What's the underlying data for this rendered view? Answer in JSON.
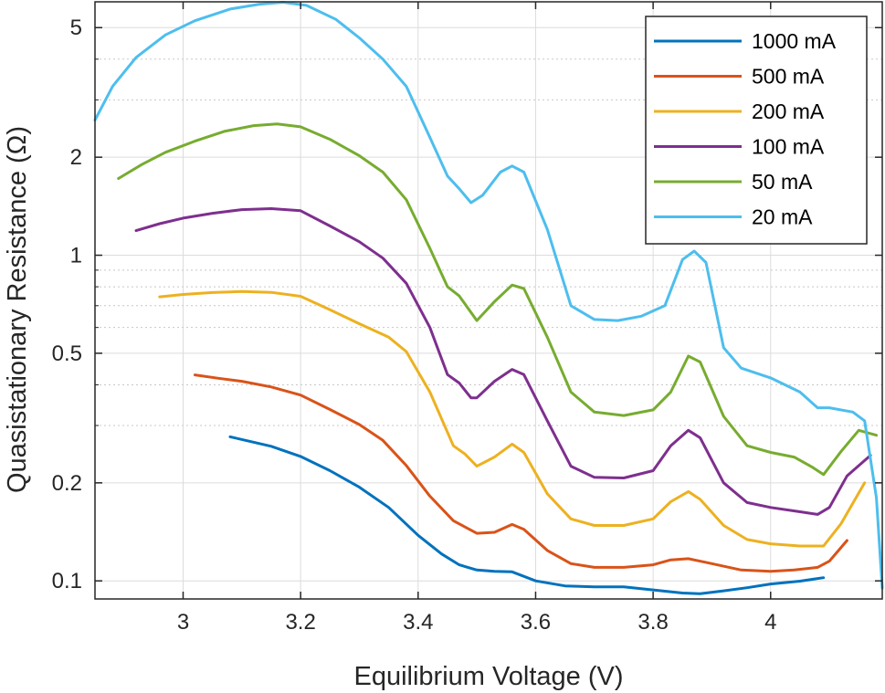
{
  "chart_data": {
    "type": "line",
    "title": "",
    "xlabel": "Equilibrium Voltage (V)",
    "ylabel": "Quasistationary Resistance (Ω)",
    "x_scale": "linear",
    "y_scale": "log",
    "xlim": [
      2.85,
      4.19
    ],
    "ylim": [
      0.088,
      6.0
    ],
    "x_ticks": [
      3,
      3.2,
      3.4,
      3.6,
      3.8,
      4
    ],
    "x_tick_labels": [
      "3",
      "3.2",
      "3.4",
      "3.6",
      "3.8",
      "4"
    ],
    "y_ticks": [
      0.1,
      0.2,
      0.5,
      1,
      2,
      5
    ],
    "y_tick_labels": [
      "0.1",
      "0.2",
      "0.5",
      "1",
      "2",
      "5"
    ],
    "y_minor_ticks": [
      0.3,
      0.4,
      0.6,
      0.7,
      0.8,
      0.9,
      3,
      4
    ],
    "grid": true,
    "legend_position": "top-right",
    "series": [
      {
        "name": "1000 mA",
        "color": "#0072BD",
        "points": [
          [
            3.08,
            0.277
          ],
          [
            3.15,
            0.259
          ],
          [
            3.2,
            0.241
          ],
          [
            3.25,
            0.218
          ],
          [
            3.3,
            0.194
          ],
          [
            3.35,
            0.168
          ],
          [
            3.4,
            0.138
          ],
          [
            3.44,
            0.121
          ],
          [
            3.47,
            0.112
          ],
          [
            3.5,
            0.108
          ],
          [
            3.53,
            0.107
          ],
          [
            3.56,
            0.1066
          ],
          [
            3.6,
            0.1
          ],
          [
            3.65,
            0.0965
          ],
          [
            3.7,
            0.0958
          ],
          [
            3.75,
            0.0958
          ],
          [
            3.8,
            0.0938
          ],
          [
            3.85,
            0.0918
          ],
          [
            3.88,
            0.0913
          ],
          [
            3.92,
            0.0932
          ],
          [
            3.96,
            0.0953
          ],
          [
            4.0,
            0.0978
          ],
          [
            4.05,
            0.0998
          ],
          [
            4.09,
            0.1023
          ]
        ]
      },
      {
        "name": "500 mA",
        "color": "#D95319",
        "points": [
          [
            3.02,
            0.429
          ],
          [
            3.06,
            0.419
          ],
          [
            3.1,
            0.41
          ],
          [
            3.15,
            0.394
          ],
          [
            3.2,
            0.372
          ],
          [
            3.25,
            0.336
          ],
          [
            3.3,
            0.302
          ],
          [
            3.34,
            0.27
          ],
          [
            3.38,
            0.226
          ],
          [
            3.42,
            0.182
          ],
          [
            3.46,
            0.153
          ],
          [
            3.5,
            0.14
          ],
          [
            3.53,
            0.141
          ],
          [
            3.56,
            0.149
          ],
          [
            3.58,
            0.144
          ],
          [
            3.62,
            0.124
          ],
          [
            3.66,
            0.113
          ],
          [
            3.7,
            0.11
          ],
          [
            3.75,
            0.11
          ],
          [
            3.8,
            0.112
          ],
          [
            3.83,
            0.116
          ],
          [
            3.86,
            0.117
          ],
          [
            3.9,
            0.113
          ],
          [
            3.95,
            0.108
          ],
          [
            4.0,
            0.107
          ],
          [
            4.04,
            0.108
          ],
          [
            4.08,
            0.11
          ],
          [
            4.1,
            0.115
          ],
          [
            4.13,
            0.133
          ]
        ]
      },
      {
        "name": "200 mA",
        "color": "#EDB120",
        "points": [
          [
            2.96,
            0.745
          ],
          [
            3.0,
            0.758
          ],
          [
            3.05,
            0.768
          ],
          [
            3.1,
            0.774
          ],
          [
            3.15,
            0.769
          ],
          [
            3.2,
            0.748
          ],
          [
            3.25,
            0.68
          ],
          [
            3.3,
            0.616
          ],
          [
            3.35,
            0.56
          ],
          [
            3.38,
            0.506
          ],
          [
            3.42,
            0.38
          ],
          [
            3.46,
            0.26
          ],
          [
            3.48,
            0.245
          ],
          [
            3.5,
            0.225
          ],
          [
            3.53,
            0.24
          ],
          [
            3.56,
            0.263
          ],
          [
            3.58,
            0.248
          ],
          [
            3.62,
            0.185
          ],
          [
            3.66,
            0.155
          ],
          [
            3.7,
            0.148
          ],
          [
            3.75,
            0.148
          ],
          [
            3.8,
            0.155
          ],
          [
            3.83,
            0.175
          ],
          [
            3.86,
            0.188
          ],
          [
            3.88,
            0.178
          ],
          [
            3.92,
            0.148
          ],
          [
            3.96,
            0.134
          ],
          [
            4.0,
            0.13
          ],
          [
            4.05,
            0.128
          ],
          [
            4.09,
            0.128
          ],
          [
            4.12,
            0.15
          ],
          [
            4.16,
            0.2
          ]
        ]
      },
      {
        "name": "100 mA",
        "color": "#7E2F8E",
        "points": [
          [
            2.92,
            1.19
          ],
          [
            2.96,
            1.25
          ],
          [
            3.0,
            1.3
          ],
          [
            3.05,
            1.345
          ],
          [
            3.1,
            1.38
          ],
          [
            3.15,
            1.39
          ],
          [
            3.2,
            1.37
          ],
          [
            3.25,
            1.23
          ],
          [
            3.3,
            1.1
          ],
          [
            3.34,
            0.98
          ],
          [
            3.38,
            0.82
          ],
          [
            3.42,
            0.6
          ],
          [
            3.45,
            0.43
          ],
          [
            3.47,
            0.405
          ],
          [
            3.49,
            0.365
          ],
          [
            3.5,
            0.365
          ],
          [
            3.53,
            0.41
          ],
          [
            3.56,
            0.446
          ],
          [
            3.58,
            0.43
          ],
          [
            3.62,
            0.31
          ],
          [
            3.66,
            0.225
          ],
          [
            3.7,
            0.208
          ],
          [
            3.75,
            0.207
          ],
          [
            3.8,
            0.218
          ],
          [
            3.83,
            0.26
          ],
          [
            3.86,
            0.29
          ],
          [
            3.88,
            0.275
          ],
          [
            3.92,
            0.2
          ],
          [
            3.96,
            0.174
          ],
          [
            4.0,
            0.168
          ],
          [
            4.05,
            0.163
          ],
          [
            4.08,
            0.16
          ],
          [
            4.1,
            0.168
          ],
          [
            4.13,
            0.21
          ],
          [
            4.17,
            0.243
          ]
        ]
      },
      {
        "name": "50 mA",
        "color": "#77AC30",
        "points": [
          [
            2.89,
            1.72
          ],
          [
            2.93,
            1.9
          ],
          [
            2.97,
            2.07
          ],
          [
            3.02,
            2.24
          ],
          [
            3.07,
            2.4
          ],
          [
            3.12,
            2.5
          ],
          [
            3.16,
            2.53
          ],
          [
            3.2,
            2.48
          ],
          [
            3.25,
            2.27
          ],
          [
            3.3,
            2.02
          ],
          [
            3.34,
            1.8
          ],
          [
            3.38,
            1.48
          ],
          [
            3.42,
            1.05
          ],
          [
            3.45,
            0.8
          ],
          [
            3.47,
            0.75
          ],
          [
            3.5,
            0.63
          ],
          [
            3.53,
            0.72
          ],
          [
            3.56,
            0.81
          ],
          [
            3.58,
            0.79
          ],
          [
            3.62,
            0.56
          ],
          [
            3.66,
            0.38
          ],
          [
            3.7,
            0.33
          ],
          [
            3.75,
            0.322
          ],
          [
            3.8,
            0.335
          ],
          [
            3.83,
            0.38
          ],
          [
            3.86,
            0.49
          ],
          [
            3.88,
            0.47
          ],
          [
            3.92,
            0.32
          ],
          [
            3.96,
            0.26
          ],
          [
            4.0,
            0.248
          ],
          [
            4.04,
            0.24
          ],
          [
            4.07,
            0.224
          ],
          [
            4.09,
            0.212
          ],
          [
            4.12,
            0.25
          ],
          [
            4.15,
            0.29
          ],
          [
            4.18,
            0.28
          ]
        ]
      },
      {
        "name": "20 mA",
        "color": "#4DBEEE",
        "points": [
          [
            2.85,
            2.6
          ],
          [
            2.88,
            3.3
          ],
          [
            2.92,
            4.05
          ],
          [
            2.97,
            4.75
          ],
          [
            3.02,
            5.25
          ],
          [
            3.08,
            5.7
          ],
          [
            3.13,
            5.9
          ],
          [
            3.17,
            5.98
          ],
          [
            3.21,
            5.85
          ],
          [
            3.26,
            5.3
          ],
          [
            3.3,
            4.65
          ],
          [
            3.34,
            4.0
          ],
          [
            3.38,
            3.3
          ],
          [
            3.42,
            2.3
          ],
          [
            3.45,
            1.75
          ],
          [
            3.47,
            1.6
          ],
          [
            3.49,
            1.45
          ],
          [
            3.51,
            1.53
          ],
          [
            3.54,
            1.8
          ],
          [
            3.56,
            1.88
          ],
          [
            3.58,
            1.8
          ],
          [
            3.62,
            1.2
          ],
          [
            3.66,
            0.7
          ],
          [
            3.7,
            0.635
          ],
          [
            3.74,
            0.63
          ],
          [
            3.78,
            0.65
          ],
          [
            3.82,
            0.7
          ],
          [
            3.85,
            0.97
          ],
          [
            3.87,
            1.03
          ],
          [
            3.89,
            0.95
          ],
          [
            3.92,
            0.52
          ],
          [
            3.95,
            0.45
          ],
          [
            4.0,
            0.42
          ],
          [
            4.05,
            0.38
          ],
          [
            4.08,
            0.34
          ],
          [
            4.1,
            0.34
          ],
          [
            4.14,
            0.33
          ],
          [
            4.16,
            0.31
          ],
          [
            4.18,
            0.18
          ],
          [
            4.19,
            0.095
          ]
        ]
      }
    ]
  }
}
